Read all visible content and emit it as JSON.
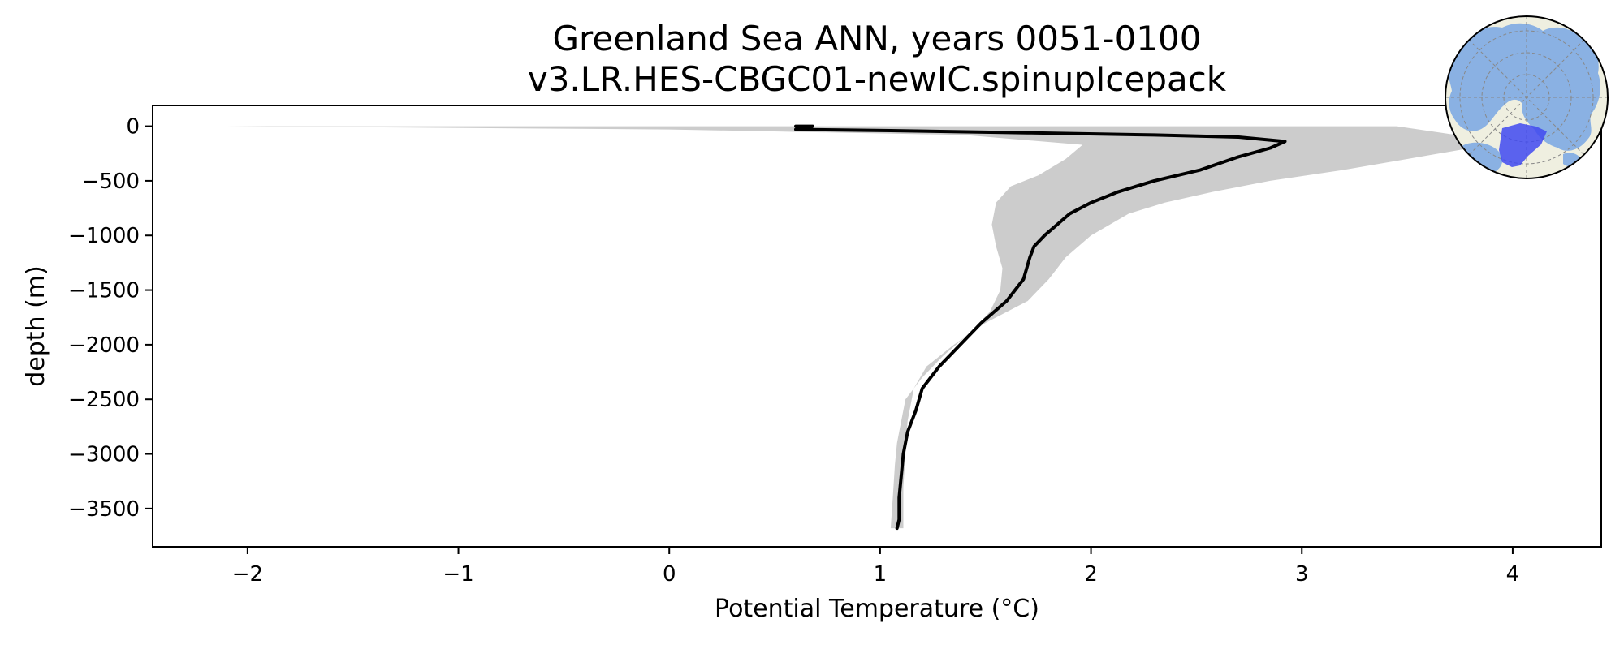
{
  "chart_data": {
    "type": "line",
    "title": "Greenland Sea ANN, years 0051-0100",
    "subtitle": "v3.LR.HES-CBGC01-newIC.spinupIcepack",
    "xlabel": "Potential Temperature (°C)",
    "ylabel": "depth (m)",
    "xlim": [
      -2.45,
      4.42
    ],
    "ylim": [
      -3850,
      190
    ],
    "xticks": [
      -2,
      -1,
      0,
      1,
      2,
      3,
      4
    ],
    "xtick_labels": [
      "−2",
      "−1",
      "0",
      "1",
      "2",
      "3",
      "4"
    ],
    "yticks": [
      0,
      -500,
      -1000,
      -1500,
      -2000,
      -2500,
      -3000,
      -3500
    ],
    "ytick_labels": [
      "0",
      "−500",
      "−1000",
      "−1500",
      "−2000",
      "−2500",
      "−3000",
      "−3500"
    ],
    "grid": false,
    "legend": "none",
    "colors": {
      "mean_line": "#000000",
      "range_band": "#cccccc"
    },
    "series": [
      {
        "role": "mean",
        "x": [
          0.6,
          0.68,
          0.67,
          0.62,
          0.6,
          1.05,
          1.7,
          2.3,
          2.7,
          2.92,
          2.85,
          2.7,
          2.52,
          2.3,
          2.13,
          2.0,
          1.9,
          1.84,
          1.78,
          1.73,
          1.71,
          1.68,
          1.6,
          1.48,
          1.38,
          1.28,
          1.2,
          1.17,
          1.13,
          1.11,
          1.1,
          1.09,
          1.09,
          1.08
        ],
        "y": [
          0,
          0,
          -10,
          -20,
          -30,
          -40,
          -60,
          -80,
          -100,
          -140,
          -200,
          -280,
          -400,
          -500,
          -600,
          -700,
          -800,
          -900,
          -1000,
          -1100,
          -1200,
          -1400,
          -1600,
          -1800,
          -2000,
          -2200,
          -2400,
          -2600,
          -2800,
          -3000,
          -3200,
          -3400,
          -3600,
          -3680
        ]
      },
      {
        "role": "range_upper",
        "x": [
          3.45,
          3.8,
          3.97,
          3.8,
          3.5,
          3.2,
          2.85,
          2.58,
          2.35,
          2.18,
          2.0,
          1.88,
          1.8,
          1.7,
          1.5,
          1.35,
          1.22,
          1.16,
          1.13,
          1.12,
          1.11,
          1.11
        ],
        "y": [
          0,
          -100,
          -150,
          -200,
          -300,
          -400,
          -500,
          -600,
          -700,
          -800,
          -1000,
          -1200,
          -1400,
          -1600,
          -1800,
          -2000,
          -2200,
          -2400,
          -2700,
          -3000,
          -3300,
          -3680
        ]
      },
      {
        "role": "range_lower",
        "x": [
          -2.1,
          0.0,
          1.4,
          1.96,
          1.88,
          1.75,
          1.62,
          1.55,
          1.53,
          1.55,
          1.58,
          1.57,
          1.52,
          1.42,
          1.3,
          1.2,
          1.12,
          1.1,
          1.08,
          1.07,
          1.06,
          1.05
        ],
        "y": [
          0,
          -30,
          -80,
          -170,
          -300,
          -450,
          -550,
          -700,
          -900,
          -1100,
          -1300,
          -1500,
          -1700,
          -1900,
          -2100,
          -2300,
          -2500,
          -2700,
          -2900,
          -3100,
          -3400,
          -3680
        ]
      }
    ],
    "inset_map": {
      "type": "polar-map",
      "ocean_color": "#efefe0",
      "land_color": "#8ab1e3",
      "region_color": "#3f49f0",
      "outline_color": "#000000",
      "graticule_color": "#888888"
    }
  }
}
